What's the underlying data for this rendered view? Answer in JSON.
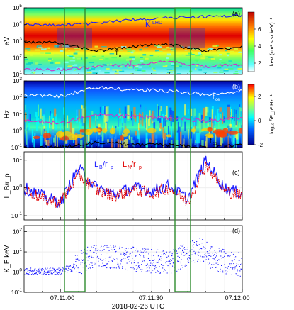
{
  "figure": {
    "xlabel": "2018-02-26 UTC",
    "x_ticks": [
      "07:11:00",
      "07:11:30",
      "07:12:00"
    ]
  },
  "highlight_color": "#2e8b2e",
  "chart_data": [
    {
      "panel": "a",
      "type": "heatmap",
      "ylabel": "eV",
      "y_scale": "log",
      "ylim": [
        10,
        100000
      ],
      "y_ticks": [
        "10^1",
        "10^2",
        "10^3",
        "10^4",
        "10^5"
      ],
      "colorbar": {
        "label": "keV (cm² s sr keV)⁻¹",
        "range": [
          1,
          8
        ],
        "ticks": [
          "2",
          "4",
          "6"
        ]
      },
      "annotations": [
        "K",
        "LHD",
        "T",
        "e",
        "T",
        "p"
      ],
      "series": [
        {
          "name": "K_LHD",
          "color": "#1a1aff",
          "x": [
            0,
            10,
            20,
            30,
            40,
            50,
            60
          ],
          "y": [
            10000,
            9000,
            12000,
            20000,
            25000,
            30000,
            35000
          ]
        },
        {
          "name": "T_e",
          "color": "#000000",
          "x": [
            0,
            10,
            20,
            30,
            40,
            50,
            60
          ],
          "y": [
            900,
            800,
            250,
            500,
            650,
            250,
            500
          ]
        },
        {
          "name": "T_p",
          "color": "#cc33cc",
          "x": [
            0,
            10,
            20,
            30,
            40,
            50,
            60
          ],
          "y": [
            20,
            20,
            30,
            40,
            60,
            30,
            40
          ]
        }
      ]
    },
    {
      "panel": "b",
      "type": "heatmap",
      "ylabel": "Hz",
      "y_scale": "log",
      "ylim": [
        0.1,
        1000
      ],
      "y_ticks": [
        "10^-1",
        "10^0",
        "10^1",
        "10^2",
        "10^3"
      ],
      "colorbar": {
        "label": "log₁₀ δE_p² Hz⁻¹",
        "range": [
          -2,
          3
        ],
        "ticks": [
          "-2",
          "0",
          "2"
        ]
      },
      "annotations": [
        "f",
        "ce",
        "f",
        "cp"
      ],
      "series": [
        {
          "name": "f_ce",
          "color": "#ffffff",
          "x": [
            0,
            10,
            20,
            30,
            40,
            50,
            60
          ],
          "y": [
            150,
            120,
            400,
            300,
            250,
            150,
            250
          ]
        },
        {
          "name": "f_lh",
          "color": "#cc33cc",
          "x": [
            0,
            10,
            20,
            30,
            40,
            50,
            60
          ],
          "y": [
            4,
            3,
            10,
            7,
            6,
            4,
            6
          ]
        },
        {
          "name": "f_cp",
          "color": "#000000",
          "x": [
            0,
            10,
            20,
            30,
            40,
            50,
            60
          ],
          "y": [
            0.1,
            0.1,
            0.2,
            0.15,
            0.14,
            0.1,
            0.14
          ]
        }
      ]
    },
    {
      "panel": "c",
      "type": "line",
      "ylabel": "L_B/r_p",
      "y_scale": "log",
      "ylim": [
        0.07,
        20
      ],
      "y_ticks": [
        "10^-1",
        "10^0",
        "10^1"
      ],
      "annotations": [
        "L",
        "B",
        "/r",
        "p",
        "L",
        "N",
        "/r",
        "p"
      ],
      "series": [
        {
          "name": "L_B/r_p",
          "color": "#1a1aff",
          "x": [
            0,
            5,
            10,
            15,
            20,
            25,
            30,
            35,
            40,
            45,
            50,
            55,
            60
          ],
          "y": [
            1.0,
            0.5,
            0.3,
            5.0,
            1.0,
            0.6,
            1.0,
            0.8,
            1.2,
            0.4,
            10.0,
            1.0,
            0.6
          ]
        },
        {
          "name": "L_N/r_p",
          "color": "#e00000",
          "x": [
            0,
            5,
            10,
            15,
            20,
            25,
            30,
            35,
            40,
            45,
            50,
            55,
            60
          ],
          "y": [
            0.9,
            0.4,
            0.3,
            3.0,
            0.8,
            0.5,
            0.9,
            0.6,
            1.0,
            0.3,
            7.0,
            0.8,
            0.5
          ]
        }
      ]
    },
    {
      "panel": "d",
      "type": "scatter",
      "ylabel": "K_E keV",
      "y_scale": "log",
      "ylim": [
        0.1,
        200
      ],
      "y_ticks": [
        "10^-1",
        "10^0",
        "10^1",
        "10^2"
      ],
      "series": [
        {
          "name": "K_E",
          "color": "#1a1aff",
          "x": [
            0,
            10,
            15,
            20,
            30,
            40,
            48,
            52,
            60
          ],
          "y": [
            1.0,
            1.0,
            2.0,
            5.0,
            3.0,
            2.0,
            10.0,
            3.0,
            1.5
          ]
        }
      ]
    }
  ]
}
